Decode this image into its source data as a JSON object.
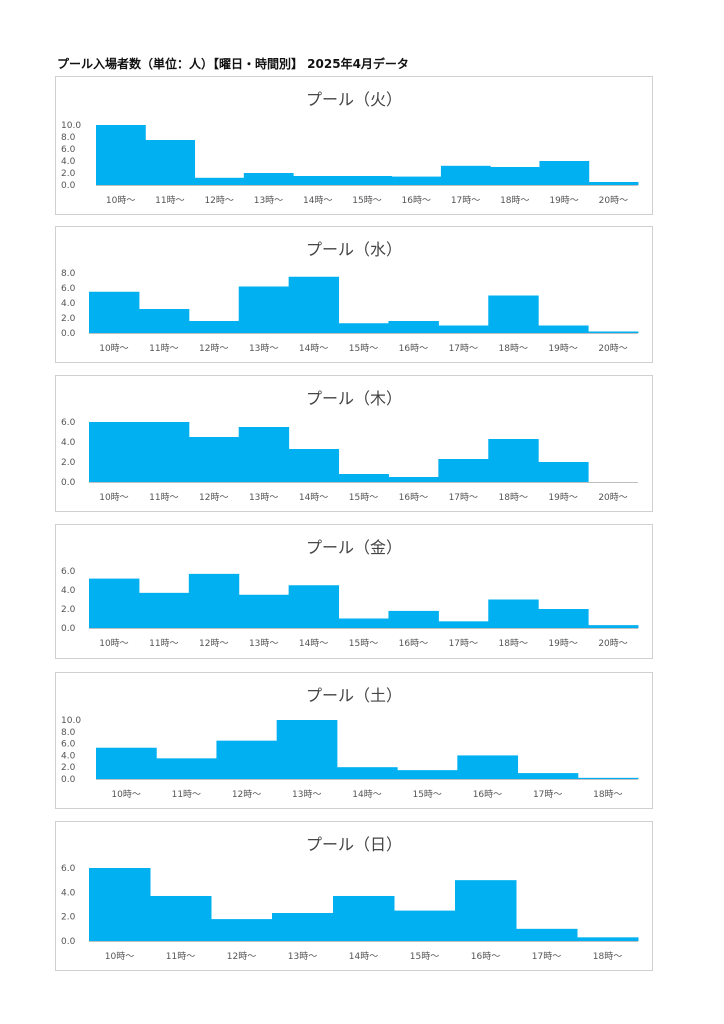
{
  "page_title": "プール入場者数（単位：人）【曜日・時間別】 2025年4月データ",
  "chart_data": [
    {
      "type": "bar",
      "title": "プール（火）",
      "categories": [
        "10時～",
        "11時～",
        "12時～",
        "13時～",
        "14時～",
        "15時～",
        "16時～",
        "17時～",
        "18時～",
        "19時～",
        "20時～"
      ],
      "values": [
        10.0,
        7.5,
        1.2,
        2.0,
        1.5,
        1.5,
        1.4,
        3.2,
        3.0,
        4.0,
        0.5
      ],
      "yticks": [
        "0.0",
        "2.0",
        "4.0",
        "6.0",
        "8.0",
        "10.0"
      ],
      "ylim": [
        0,
        10
      ],
      "color": "#00b0f0"
    },
    {
      "type": "bar",
      "title": "プール（水）",
      "categories": [
        "10時～",
        "11時～",
        "12時～",
        "13時～",
        "14時～",
        "15時～",
        "16時～",
        "17時～",
        "18時～",
        "19時～",
        "20時～"
      ],
      "values": [
        5.5,
        3.2,
        1.6,
        6.2,
        7.5,
        1.3,
        1.6,
        1.0,
        5.0,
        1.0,
        0.2
      ],
      "yticks": [
        "0.0",
        "2.0",
        "4.0",
        "6.0",
        "8.0"
      ],
      "ylim": [
        0,
        8
      ],
      "color": "#00b0f0"
    },
    {
      "type": "bar",
      "title": "プール（木）",
      "categories": [
        "10時～",
        "11時～",
        "12時～",
        "13時～",
        "14時～",
        "15時～",
        "16時～",
        "17時～",
        "18時～",
        "19時～",
        "20時～"
      ],
      "values": [
        6.0,
        6.0,
        4.5,
        5.5,
        3.3,
        0.8,
        0.5,
        2.3,
        4.3,
        2.0,
        0.0
      ],
      "yticks": [
        "0.0",
        "2.0",
        "4.0",
        "6.0"
      ],
      "ylim": [
        0,
        6
      ],
      "color": "#00b0f0"
    },
    {
      "type": "bar",
      "title": "プール（金）",
      "categories": [
        "10時～",
        "11時～",
        "12時～",
        "13時～",
        "14時～",
        "15時～",
        "16時～",
        "17時～",
        "18時～",
        "19時～",
        "20時～"
      ],
      "values": [
        5.2,
        3.7,
        5.7,
        3.5,
        4.5,
        1.0,
        1.8,
        0.7,
        3.0,
        2.0,
        0.3
      ],
      "yticks": [
        "0.0",
        "2.0",
        "4.0",
        "6.0"
      ],
      "ylim": [
        0,
        6
      ],
      "color": "#00b0f0"
    },
    {
      "type": "bar",
      "title": "プール（土）",
      "categories": [
        "10時～",
        "11時～",
        "12時～",
        "13時～",
        "14時～",
        "15時～",
        "16時～",
        "17時～",
        "18時～"
      ],
      "values": [
        5.3,
        3.5,
        6.5,
        10.0,
        2.0,
        1.5,
        4.0,
        1.0,
        0.2
      ],
      "yticks": [
        "0.0",
        "2.0",
        "4.0",
        "6.0",
        "8.0",
        "10.0"
      ],
      "ylim": [
        0,
        10
      ],
      "color": "#00b0f0"
    },
    {
      "type": "bar",
      "title": "プール（日）",
      "categories": [
        "10時～",
        "11時～",
        "12時～",
        "13時～",
        "14時～",
        "15時～",
        "16時～",
        "17時～",
        "18時～"
      ],
      "values": [
        6.0,
        3.7,
        1.8,
        2.3,
        3.7,
        2.5,
        5.0,
        1.0,
        0.3
      ],
      "yticks": [
        "0.0",
        "2.0",
        "4.0",
        "6.0"
      ],
      "ylim": [
        0,
        6
      ],
      "color": "#00b0f0"
    }
  ]
}
